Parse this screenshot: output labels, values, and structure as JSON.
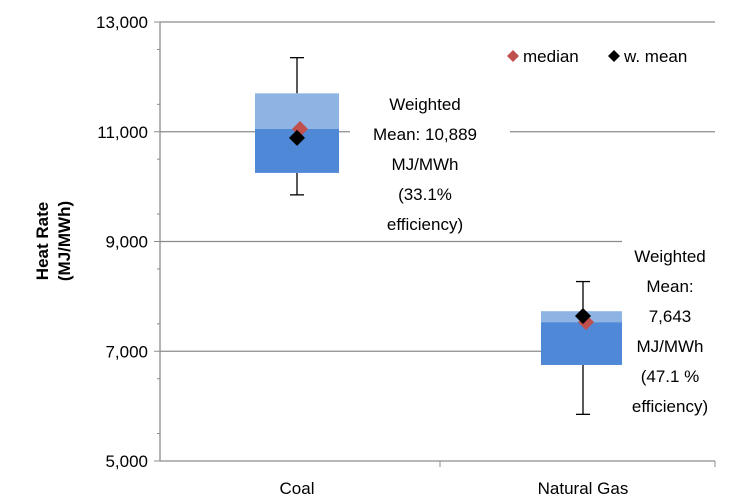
{
  "chart_data": {
    "type": "box",
    "ylabel": "Heat Rate\n(MJ/MWh)",
    "xlabel": "",
    "ylim": [
      5000,
      13000
    ],
    "yticks": [
      {
        "value": 5000,
        "label": "5,000"
      },
      {
        "value": 7000,
        "label": "7,000"
      },
      {
        "value": 9000,
        "label": "9,000"
      },
      {
        "value": 11000,
        "label": "11,000"
      },
      {
        "value": 13000,
        "label": "13,000"
      }
    ],
    "grid": true,
    "legend": {
      "position": "top-right",
      "entries": [
        {
          "label": "median",
          "marker": "diamond",
          "color": "#c0504d"
        },
        {
          "label": "w. mean",
          "marker": "diamond",
          "color": "#000000"
        }
      ]
    },
    "colors": {
      "box_upper": "#8eb4e3",
      "box_lower": "#4f88d6",
      "median": "#c0504d",
      "mean": "#000000",
      "grid": "#8c8c8c"
    },
    "categories": [
      "Coal",
      "Natural Gas"
    ],
    "boxes": [
      {
        "category": "Coal",
        "whisker_low": 9850,
        "q1": 10250,
        "median": 11050,
        "q3": 11700,
        "whisker_high": 12350,
        "weighted_mean": 10889
      },
      {
        "category": "Natural Gas",
        "whisker_low": 5850,
        "q1": 6750,
        "median": 7530,
        "q3": 7730,
        "whisker_high": 8270,
        "weighted_mean": 7643
      }
    ],
    "annotations": [
      {
        "category": "Coal",
        "lines": [
          "Weighted",
          "Mean: 10,889",
          "MJ/MWh",
          "(33.1%",
          "efficiency)"
        ]
      },
      {
        "category": "Natural Gas",
        "lines": [
          "Weighted",
          "Mean:",
          "7,643",
          "MJ/MWh",
          "(47.1 %",
          "efficiency)"
        ]
      }
    ]
  }
}
